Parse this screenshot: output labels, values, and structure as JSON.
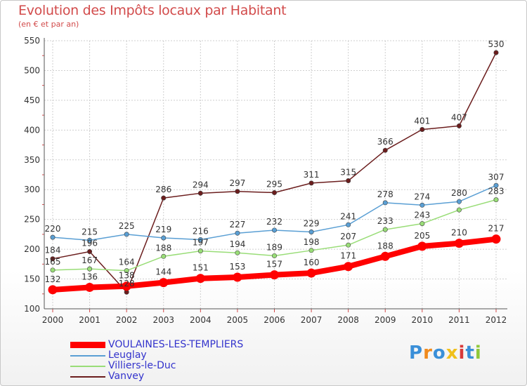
{
  "title": "Evolution des Impôts locaux par Habitant",
  "subtitle": "(en € et par an)",
  "logo": "Proxiti",
  "colors": {
    "title": "#d24b4b",
    "grid": "#cfcfcf",
    "axis": "#555555"
  },
  "chart_data": {
    "type": "line",
    "title": "Evolution des Impôts locaux par Habitant",
    "subtitle": "(en € et par an)",
    "xlabel": "",
    "ylabel": "",
    "ylim": [
      100,
      550
    ],
    "yticks": [
      100,
      150,
      200,
      250,
      300,
      350,
      400,
      450,
      500,
      550
    ],
    "grid": true,
    "legend_position": "bottom-left",
    "x": [
      "2000",
      "2001",
      "2002",
      "2003",
      "2004",
      "2005",
      "2006",
      "2007",
      "2008",
      "2009",
      "2010",
      "2011",
      "2012"
    ],
    "series": [
      {
        "name": "Vanvey",
        "color": "#6b1d1d",
        "values": [
          184,
          196,
          128,
          286,
          294,
          297,
          295,
          311,
          315,
          366,
          401,
          407,
          530
        ],
        "labels": [
          "184",
          "196",
          "128",
          "286",
          "294",
          "297",
          "295",
          "311",
          "315",
          "366",
          "401",
          "407",
          "530"
        ]
      },
      {
        "name": "Villiers-le-Duc",
        "color": "#99dd77",
        "values": [
          165,
          167,
          164,
          188,
          197,
          194,
          189,
          198,
          207,
          233,
          243,
          266,
          283
        ],
        "labels": [
          "165",
          "167",
          "164",
          "188",
          "197",
          "194",
          "189",
          "198",
          "207",
          "233",
          "243",
          "",
          "283"
        ]
      },
      {
        "name": "Leuglay",
        "color": "#5a9fd4",
        "values": [
          220,
          215,
          225,
          219,
          216,
          227,
          232,
          229,
          241,
          278,
          274,
          280,
          307
        ],
        "labels": [
          "220",
          "215",
          "225",
          "219",
          "216",
          "227",
          "232",
          "229",
          "241",
          "278",
          "274",
          "280",
          "307"
        ]
      },
      {
        "name": "VOULAINES-LES-TEMPLIERS",
        "color": "#ff0000",
        "values": [
          132,
          136,
          138,
          144,
          151,
          153,
          157,
          160,
          171,
          188,
          205,
          210,
          217
        ],
        "labels": [
          "132",
          "136",
          "138",
          "144",
          "151",
          "153",
          "157",
          "160",
          "171",
          "188",
          "205",
          "210",
          "217"
        ]
      }
    ],
    "legend": [
      {
        "name": "VOULAINES-LES-TEMPLIERS",
        "color": "#ff0000",
        "text_color": "#3333cc"
      },
      {
        "name": "Leuglay",
        "color": "#5a9fd4",
        "text_color": "#3333cc"
      },
      {
        "name": "Villiers-le-Duc",
        "color": "#99dd77",
        "text_color": "#3333cc"
      },
      {
        "name": "Vanvey",
        "color": "#6b1d1d",
        "text_color": "#3333cc"
      }
    ]
  }
}
